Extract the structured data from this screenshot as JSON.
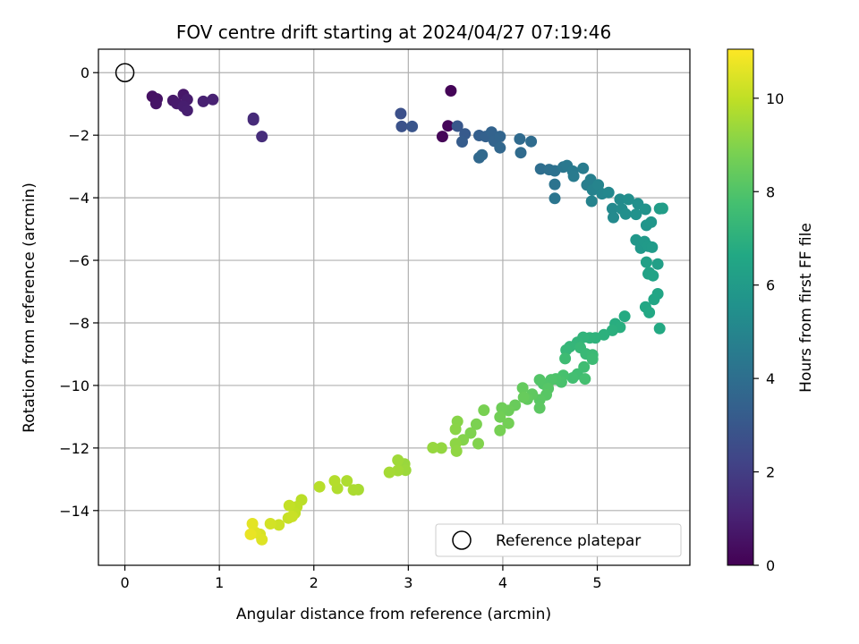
{
  "chart_data": {
    "type": "scatter",
    "title": "FOV centre drift starting at 2024/04/27 07:19:46",
    "xlabel": "Angular distance from reference (arcmin)",
    "ylabel": "Rotation from reference (arcmin)",
    "xlim": [
      -0.28,
      5.98
    ],
    "ylim": [
      -15.75,
      0.75
    ],
    "xticks": [
      0,
      1,
      2,
      3,
      4,
      5
    ],
    "yticks": [
      0,
      -2,
      -4,
      -6,
      -8,
      -10,
      -12,
      -14
    ],
    "grid": true,
    "colorbar": {
      "label": "Hours from first FF file",
      "range": [
        0,
        11.05
      ],
      "ticks": [
        0,
        2,
        4,
        6,
        8,
        10
      ],
      "colormap": "viridis"
    },
    "legend": {
      "position": "lower-right",
      "entries": [
        "Reference platepar"
      ]
    },
    "reference_point": {
      "x": 0,
      "y": 0
    },
    "series": [
      {
        "columns": [
          "x",
          "y",
          "hours"
        ],
        "points": [
          [
            3.45,
            -0.58,
            0.1
          ],
          [
            3.36,
            -2.04,
            0.15
          ],
          [
            3.42,
            -1.7,
            0.2
          ],
          [
            0.29,
            -0.76,
            0.5
          ],
          [
            0.34,
            -0.84,
            0.55
          ],
          [
            0.33,
            -0.99,
            0.6
          ],
          [
            0.62,
            -0.7,
            0.7
          ],
          [
            0.51,
            -0.89,
            0.75
          ],
          [
            0.55,
            -0.99,
            0.8
          ],
          [
            0.66,
            -0.86,
            0.85
          ],
          [
            0.62,
            -1.08,
            0.9
          ],
          [
            0.66,
            -1.21,
            0.95
          ],
          [
            0.83,
            -0.92,
            1.0
          ],
          [
            0.93,
            -0.86,
            1.05
          ],
          [
            1.36,
            -1.51,
            1.3
          ],
          [
            1.36,
            -1.46,
            1.35
          ],
          [
            1.45,
            -2.04,
            1.4
          ],
          [
            2.92,
            -1.31,
            2.7
          ],
          [
            2.93,
            -1.72,
            2.8
          ],
          [
            3.04,
            -1.72,
            2.9
          ],
          [
            3.52,
            -1.71,
            3.0
          ],
          [
            3.6,
            -1.96,
            3.1
          ],
          [
            3.57,
            -2.21,
            3.2
          ],
          [
            3.75,
            -2.01,
            3.3
          ],
          [
            3.82,
            -2.04,
            3.4
          ],
          [
            3.88,
            -1.9,
            3.5
          ],
          [
            3.91,
            -2.19,
            3.55
          ],
          [
            3.97,
            -2.04,
            3.6
          ],
          [
            3.97,
            -2.4,
            3.65
          ],
          [
            3.75,
            -2.72,
            3.7
          ],
          [
            3.78,
            -2.63,
            3.75
          ],
          [
            4.18,
            -2.12,
            3.8
          ],
          [
            4.19,
            -2.56,
            3.85
          ],
          [
            4.3,
            -2.2,
            3.9
          ],
          [
            4.4,
            -3.08,
            4.0
          ],
          [
            4.49,
            -3.1,
            4.05
          ],
          [
            4.55,
            -3.14,
            4.1
          ],
          [
            4.55,
            -3.57,
            4.2
          ],
          [
            4.55,
            -4.02,
            4.3
          ],
          [
            4.64,
            -3.02,
            4.35
          ],
          [
            4.68,
            -2.97,
            4.4
          ],
          [
            4.74,
            -3.15,
            4.5
          ],
          [
            4.75,
            -3.31,
            4.55
          ],
          [
            4.85,
            -3.06,
            4.6
          ],
          [
            4.89,
            -3.59,
            4.7
          ],
          [
            4.93,
            -3.42,
            4.75
          ],
          [
            4.95,
            -3.75,
            4.85
          ],
          [
            4.94,
            -4.11,
            4.9
          ],
          [
            5.01,
            -3.59,
            4.95
          ],
          [
            5.05,
            -3.87,
            5.0
          ],
          [
            5.12,
            -3.83,
            5.1
          ],
          [
            5.16,
            -4.35,
            5.15
          ],
          [
            5.17,
            -4.63,
            5.2
          ],
          [
            5.24,
            -4.05,
            5.25
          ],
          [
            5.26,
            -4.36,
            5.3
          ],
          [
            5.33,
            -4.05,
            5.4
          ],
          [
            5.3,
            -4.52,
            5.45
          ],
          [
            5.43,
            -4.19,
            5.5
          ],
          [
            5.41,
            -4.53,
            5.55
          ],
          [
            5.51,
            -4.37,
            5.6
          ],
          [
            5.52,
            -4.88,
            5.7
          ],
          [
            5.57,
            -4.78,
            5.75
          ],
          [
            5.41,
            -5.35,
            5.8
          ],
          [
            5.46,
            -5.61,
            5.85
          ],
          [
            5.5,
            -5.4,
            5.9
          ],
          [
            5.54,
            -5.55,
            5.95
          ],
          [
            5.58,
            -5.58,
            6.0
          ],
          [
            5.66,
            -4.35,
            6.05
          ],
          [
            5.69,
            -4.34,
            6.1
          ],
          [
            5.64,
            -6.12,
            6.2
          ],
          [
            5.52,
            -6.06,
            6.25
          ],
          [
            5.54,
            -6.43,
            6.3
          ],
          [
            5.55,
            -6.39,
            6.35
          ],
          [
            5.59,
            -6.49,
            6.4
          ],
          [
            5.64,
            -7.07,
            6.5
          ],
          [
            5.6,
            -7.25,
            6.55
          ],
          [
            5.51,
            -7.49,
            6.6
          ],
          [
            5.55,
            -7.67,
            6.65
          ],
          [
            5.66,
            -8.18,
            6.7
          ],
          [
            5.29,
            -7.79,
            6.75
          ],
          [
            5.19,
            -8.03,
            6.85
          ],
          [
            5.24,
            -8.14,
            6.9
          ],
          [
            5.16,
            -8.24,
            6.95
          ],
          [
            5.07,
            -8.38,
            7.0
          ],
          [
            4.98,
            -8.48,
            7.05
          ],
          [
            4.92,
            -8.48,
            7.1
          ],
          [
            4.85,
            -8.46,
            7.15
          ],
          [
            4.79,
            -8.62,
            7.2
          ],
          [
            4.71,
            -8.76,
            7.25
          ],
          [
            4.67,
            -8.87,
            7.3
          ],
          [
            4.82,
            -8.79,
            7.35
          ],
          [
            4.88,
            -8.99,
            7.4
          ],
          [
            4.95,
            -9.02,
            7.45
          ],
          [
            4.95,
            -9.16,
            7.5
          ],
          [
            4.66,
            -9.14,
            7.55
          ],
          [
            4.86,
            -9.41,
            7.6
          ],
          [
            4.79,
            -9.64,
            7.65
          ],
          [
            4.74,
            -9.76,
            7.7
          ],
          [
            4.87,
            -9.79,
            7.75
          ],
          [
            4.64,
            -9.68,
            7.8
          ],
          [
            4.62,
            -9.89,
            7.85
          ],
          [
            4.56,
            -9.79,
            7.9
          ],
          [
            4.51,
            -9.82,
            7.95
          ],
          [
            4.43,
            -9.95,
            8.0
          ],
          [
            4.39,
            -9.82,
            8.05
          ],
          [
            4.48,
            -10.1,
            8.1
          ],
          [
            4.46,
            -10.3,
            8.15
          ],
          [
            4.39,
            -10.46,
            8.2
          ],
          [
            4.39,
            -10.72,
            8.25
          ],
          [
            4.31,
            -10.28,
            8.3
          ],
          [
            4.26,
            -10.44,
            8.35
          ],
          [
            4.21,
            -10.08,
            8.4
          ],
          [
            4.22,
            -10.38,
            8.45
          ],
          [
            4.13,
            -10.63,
            8.5
          ],
          [
            4.06,
            -10.8,
            8.55
          ],
          [
            3.99,
            -10.72,
            8.6
          ],
          [
            3.97,
            -11.01,
            8.65
          ],
          [
            4.06,
            -11.21,
            8.7
          ],
          [
            3.97,
            -11.44,
            8.75
          ],
          [
            3.8,
            -10.79,
            8.8
          ],
          [
            3.72,
            -11.24,
            8.85
          ],
          [
            3.66,
            -11.52,
            8.9
          ],
          [
            3.74,
            -11.86,
            8.95
          ],
          [
            3.58,
            -11.74,
            9.0
          ],
          [
            3.52,
            -11.15,
            9.05
          ],
          [
            3.5,
            -11.4,
            9.1
          ],
          [
            3.5,
            -11.86,
            9.15
          ],
          [
            3.51,
            -12.1,
            9.2
          ],
          [
            3.35,
            -12.0,
            9.25
          ],
          [
            3.26,
            -11.99,
            9.3
          ],
          [
            2.96,
            -12.51,
            9.35
          ],
          [
            2.97,
            -12.71,
            9.4
          ],
          [
            2.89,
            -12.39,
            9.45
          ],
          [
            2.89,
            -12.72,
            9.5
          ],
          [
            2.8,
            -12.78,
            9.55
          ],
          [
            2.47,
            -13.33,
            9.6
          ],
          [
            2.42,
            -13.34,
            9.65
          ],
          [
            2.35,
            -13.05,
            9.7
          ],
          [
            2.25,
            -13.29,
            9.75
          ],
          [
            2.22,
            -13.05,
            9.8
          ],
          [
            2.06,
            -13.24,
            9.85
          ],
          [
            1.87,
            -13.66,
            9.9
          ],
          [
            1.82,
            -13.88,
            9.95
          ],
          [
            1.8,
            -14.08,
            10.0
          ],
          [
            1.74,
            -13.84,
            10.05
          ],
          [
            1.73,
            -14.24,
            10.1
          ],
          [
            1.77,
            -14.19,
            10.15
          ],
          [
            1.63,
            -14.46,
            10.2
          ],
          [
            1.54,
            -14.42,
            10.3
          ],
          [
            1.43,
            -14.76,
            10.4
          ],
          [
            1.45,
            -14.93,
            10.5
          ],
          [
            1.38,
            -14.7,
            10.55
          ],
          [
            1.35,
            -14.42,
            10.6
          ],
          [
            1.33,
            -14.76,
            10.7
          ]
        ]
      }
    ]
  }
}
